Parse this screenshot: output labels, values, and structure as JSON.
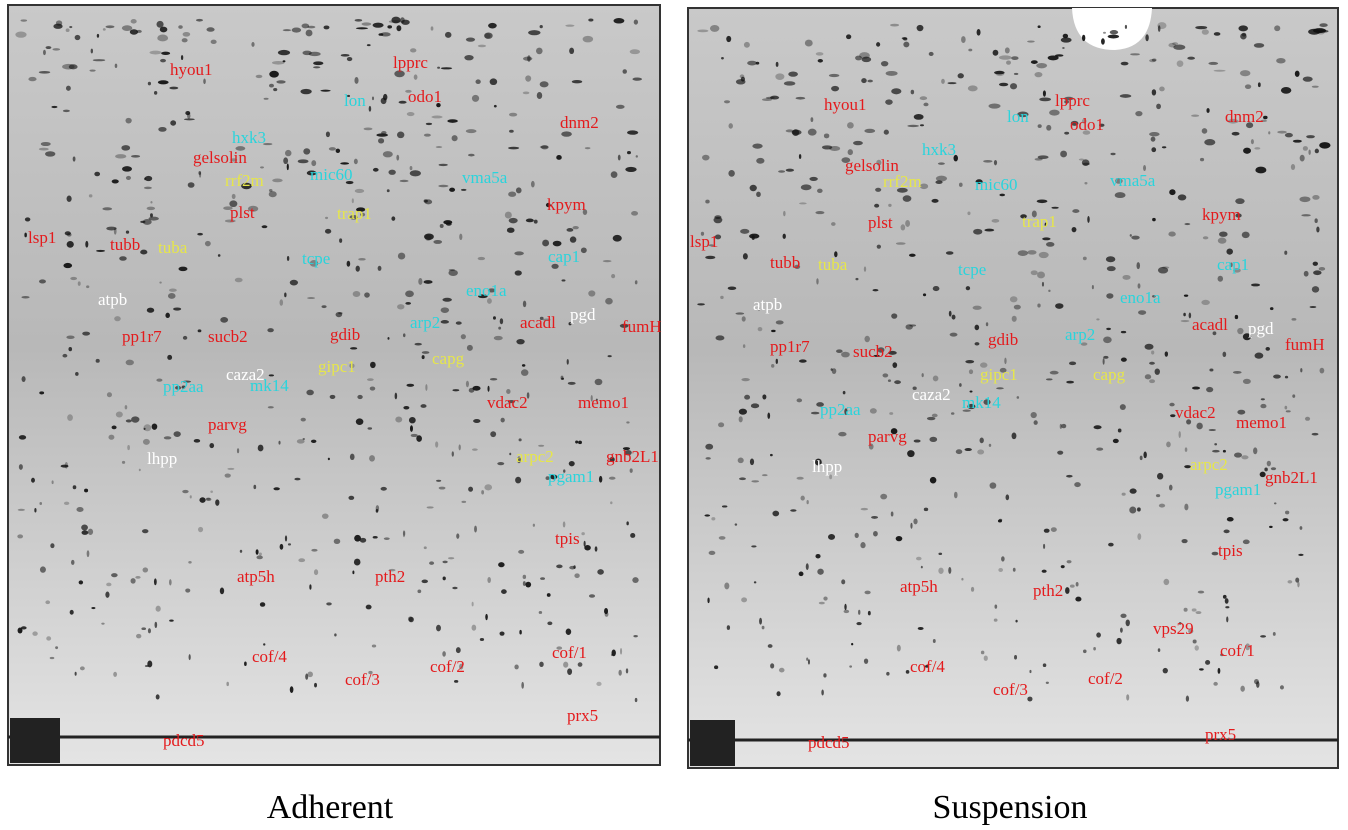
{
  "panels": [
    {
      "caption": "Adherent",
      "labels": [
        {
          "text": "hyou1",
          "color": "#e41a1c"
        },
        {
          "text": "lpprc",
          "color": "#e41a1c"
        },
        {
          "text": "odo1",
          "color": "#e41a1c"
        },
        {
          "text": "dnm2",
          "color": "#e41a1c"
        },
        {
          "text": "gelsolin",
          "color": "#e41a1c"
        },
        {
          "text": "plst",
          "color": "#e41a1c"
        },
        {
          "text": "kpym",
          "color": "#e41a1c"
        },
        {
          "text": "lsp1",
          "color": "#e41a1c"
        },
        {
          "text": "tubb",
          "color": "#e41a1c"
        },
        {
          "text": "pp1r7",
          "color": "#e41a1c"
        },
        {
          "text": "sucb2",
          "color": "#e41a1c"
        },
        {
          "text": "gdib",
          "color": "#e41a1c"
        },
        {
          "text": "acadl",
          "color": "#e41a1c"
        },
        {
          "text": "fumH",
          "color": "#e41a1c"
        },
        {
          "text": "vdac2",
          "color": "#e41a1c"
        },
        {
          "text": "memo1",
          "color": "#e41a1c"
        },
        {
          "text": "parvg",
          "color": "#e41a1c"
        },
        {
          "text": "gnb2L1",
          "color": "#e41a1c"
        },
        {
          "text": "tpis",
          "color": "#e41a1c"
        },
        {
          "text": "atp5h",
          "color": "#e41a1c"
        },
        {
          "text": "pth2",
          "color": "#e41a1c"
        },
        {
          "text": "cof/4",
          "color": "#e41a1c"
        },
        {
          "text": "cof/3",
          "color": "#e41a1c"
        },
        {
          "text": "cof/2",
          "color": "#e41a1c"
        },
        {
          "text": "cof/1",
          "color": "#e41a1c"
        },
        {
          "text": "prx5",
          "color": "#e41a1c"
        },
        {
          "text": "pdcd5",
          "color": "#e41a1c"
        },
        {
          "text": "lon",
          "color": "#2ad4dc"
        },
        {
          "text": "hxk3",
          "color": "#2ad4dc"
        },
        {
          "text": "mic60",
          "color": "#2ad4dc"
        },
        {
          "text": "vma5a",
          "color": "#2ad4dc"
        },
        {
          "text": "tcpe",
          "color": "#2ad4dc"
        },
        {
          "text": "cap1",
          "color": "#2ad4dc"
        },
        {
          "text": "eno1a",
          "color": "#2ad4dc"
        },
        {
          "text": "arp2",
          "color": "#2ad4dc"
        },
        {
          "text": "mk14",
          "color": "#2ad4dc"
        },
        {
          "text": "pp2aa",
          "color": "#2ad4dc"
        },
        {
          "text": "pgam1",
          "color": "#2ad4dc"
        },
        {
          "text": "rrf2m",
          "color": "#e6e64a"
        },
        {
          "text": "trap1",
          "color": "#e6e64a"
        },
        {
          "text": "tuba",
          "color": "#e6e64a"
        },
        {
          "text": "capg",
          "color": "#e6e64a"
        },
        {
          "text": "gipc1",
          "color": "#e6e64a"
        },
        {
          "text": "arpc2",
          "color": "#e6e64a"
        },
        {
          "text": "atpb",
          "color": "#ffffff"
        },
        {
          "text": "pgd",
          "color": "#ffffff"
        },
        {
          "text": "caza2",
          "color": "#ffffff"
        },
        {
          "text": "lhpp",
          "color": "#ffffff"
        }
      ]
    },
    {
      "caption": "Suspension",
      "labels": [
        {
          "text": "hyou1",
          "color": "#e41a1c"
        },
        {
          "text": "lpprc",
          "color": "#e41a1c"
        },
        {
          "text": "odo1",
          "color": "#e41a1c"
        },
        {
          "text": "dnm2",
          "color": "#e41a1c"
        },
        {
          "text": "gelsolin",
          "color": "#e41a1c"
        },
        {
          "text": "plst",
          "color": "#e41a1c"
        },
        {
          "text": "kpym",
          "color": "#e41a1c"
        },
        {
          "text": "lsp1",
          "color": "#e41a1c"
        },
        {
          "text": "tubb",
          "color": "#e41a1c"
        },
        {
          "text": "pp1r7",
          "color": "#e41a1c"
        },
        {
          "text": "sucb2",
          "color": "#e41a1c"
        },
        {
          "text": "gdib",
          "color": "#e41a1c"
        },
        {
          "text": "acadl",
          "color": "#e41a1c"
        },
        {
          "text": "fumH",
          "color": "#e41a1c"
        },
        {
          "text": "vdac2",
          "color": "#e41a1c"
        },
        {
          "text": "memo1",
          "color": "#e41a1c"
        },
        {
          "text": "parvg",
          "color": "#e41a1c"
        },
        {
          "text": "gnb2L1",
          "color": "#e41a1c"
        },
        {
          "text": "tpis",
          "color": "#e41a1c"
        },
        {
          "text": "atp5h",
          "color": "#e41a1c"
        },
        {
          "text": "pth2",
          "color": "#e41a1c"
        },
        {
          "text": "vps29",
          "color": "#e41a1c"
        },
        {
          "text": "cof/4",
          "color": "#e41a1c"
        },
        {
          "text": "cof/3",
          "color": "#e41a1c"
        },
        {
          "text": "cof/2",
          "color": "#e41a1c"
        },
        {
          "text": "cof/1",
          "color": "#e41a1c"
        },
        {
          "text": "prx5",
          "color": "#e41a1c"
        },
        {
          "text": "pdcd5",
          "color": "#e41a1c"
        },
        {
          "text": "lon",
          "color": "#2ad4dc"
        },
        {
          "text": "hxk3",
          "color": "#2ad4dc"
        },
        {
          "text": "mic60",
          "color": "#2ad4dc"
        },
        {
          "text": "vma5a",
          "color": "#2ad4dc"
        },
        {
          "text": "tcpe",
          "color": "#2ad4dc"
        },
        {
          "text": "cap1",
          "color": "#2ad4dc"
        },
        {
          "text": "eno1a",
          "color": "#2ad4dc"
        },
        {
          "text": "arp2",
          "color": "#2ad4dc"
        },
        {
          "text": "mk14",
          "color": "#2ad4dc"
        },
        {
          "text": "pp2aa",
          "color": "#2ad4dc"
        },
        {
          "text": "pgam1",
          "color": "#2ad4dc"
        },
        {
          "text": "rrf2m",
          "color": "#e6e64a"
        },
        {
          "text": "trap1",
          "color": "#e6e64a"
        },
        {
          "text": "tuba",
          "color": "#e6e64a"
        },
        {
          "text": "capg",
          "color": "#e6e64a"
        },
        {
          "text": "gipc1",
          "color": "#e6e64a"
        },
        {
          "text": "arpc2",
          "color": "#e6e64a"
        },
        {
          "text": "atpb",
          "color": "#ffffff"
        },
        {
          "text": "pgd",
          "color": "#ffffff"
        },
        {
          "text": "caza2",
          "color": "#ffffff"
        },
        {
          "text": "lhpp",
          "color": "#ffffff"
        }
      ]
    }
  ]
}
